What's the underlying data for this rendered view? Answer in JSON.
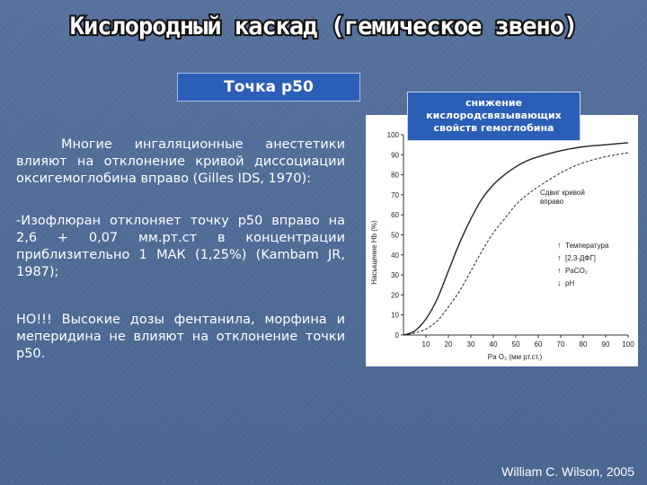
{
  "slide": {
    "title": "Кислородный каскад (гемическое звено)",
    "subtitle": "Точка p50",
    "paragraph1": "Многие ингаляционные анестетики влияют на отклонение кривой диссоциации оксигемоглобина вправо (Gilles IDS, 1970):",
    "paragraph2": "-Изофлюран отклоняет точку p50 вправо на 2,6 + 0,07 мм.рт.ст в концентрации приблизительно 1 МАК (1,25%) (Kambam JR, 1987);",
    "paragraph3": "НО!!! Высокие дозы фентанила, морфина и меперидина не влияют на отклонение точки p50.",
    "callout": "снижение кислородсвязывающих свойств гемоглобина",
    "footer": "William C. Wilson, 2005"
  },
  "chart_data": {
    "type": "line",
    "ylabel": "Насыщение Hb (%)",
    "xlabel": "Pa O₂ (мм рт.ст.)",
    "xlim": [
      0,
      100
    ],
    "ylim": [
      0,
      100
    ],
    "yticks": [
      0,
      10,
      20,
      30,
      40,
      50,
      60,
      70,
      80,
      90,
      100
    ],
    "xticks": [
      10,
      20,
      30,
      40,
      50,
      60,
      70,
      80,
      90,
      100
    ],
    "series": [
      {
        "style": "solid",
        "x": [
          0,
          5,
          10,
          15,
          20,
          25,
          30,
          35,
          40,
          45,
          50,
          55,
          60,
          70,
          80,
          90,
          100
        ],
        "y": [
          0,
          2,
          8,
          18,
          32,
          46,
          58,
          68,
          75,
          80,
          84,
          87,
          89,
          92,
          94,
          95,
          96
        ]
      },
      {
        "style": "dashed",
        "x": [
          0,
          5,
          10,
          15,
          20,
          25,
          30,
          35,
          40,
          45,
          50,
          55,
          60,
          70,
          80,
          90,
          100
        ],
        "y": [
          0,
          1,
          3,
          7,
          14,
          22,
          32,
          42,
          51,
          58,
          65,
          70,
          74,
          81,
          86,
          89,
          91
        ]
      }
    ],
    "annotations": {
      "shift_label": "Сдвиг кривой вправо",
      "factors": [
        "Температура",
        "[2,3-ДФГ]",
        "PaCO₂",
        "pH"
      ],
      "factor_arrows": [
        "↑",
        "↑",
        "↑",
        "↓"
      ]
    }
  }
}
